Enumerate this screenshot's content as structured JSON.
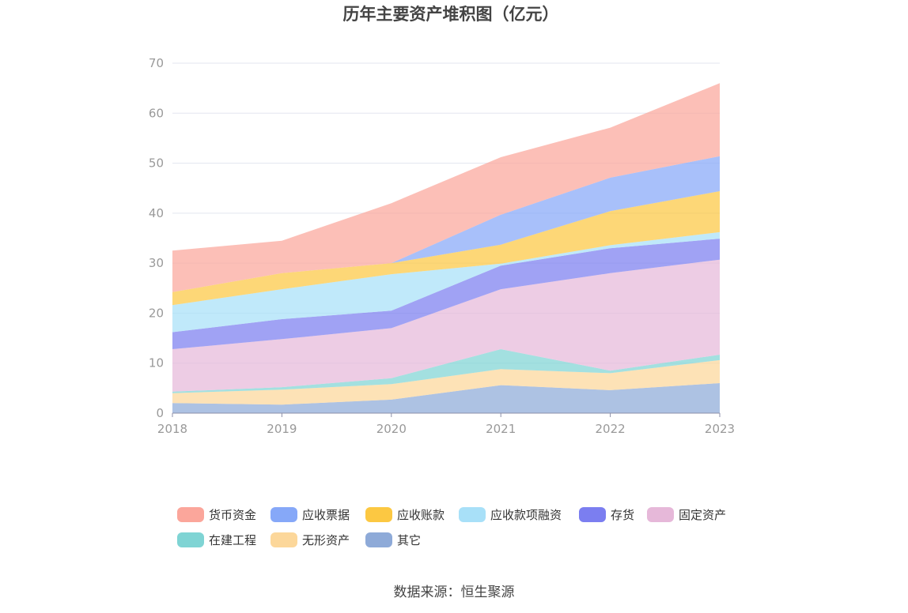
{
  "chart_data": {
    "type": "area",
    "stacked": true,
    "title": "历年主要资产堆积图（亿元）",
    "x": [
      "2018",
      "2019",
      "2020",
      "2021",
      "2022",
      "2023"
    ],
    "ylim": [
      0,
      70
    ],
    "yticks": [
      0,
      10,
      20,
      30,
      40,
      50,
      60,
      70
    ],
    "grid": true,
    "legend_position": "bottom",
    "series": [
      {
        "name": "其它",
        "color": "#8eaad8",
        "values": [
          2.0,
          1.7,
          2.7,
          5.6,
          4.6,
          6.0
        ]
      },
      {
        "name": "无形资产",
        "color": "#fcd79a",
        "values": [
          2.0,
          3.0,
          3.1,
          3.2,
          3.4,
          4.6
        ]
      },
      {
        "name": "在建工程",
        "color": "#7fd4d4",
        "values": [
          0.3,
          0.5,
          1.2,
          4.0,
          0.5,
          1.1
        ]
      },
      {
        "name": "固定资产",
        "color": "#e6b8d9",
        "values": [
          8.5,
          9.6,
          10.0,
          12.0,
          19.5,
          19.0
        ]
      },
      {
        "name": "存货",
        "color": "#7b7ef0",
        "values": [
          3.4,
          4.0,
          3.5,
          4.7,
          5.0,
          4.2
        ]
      },
      {
        "name": "应收款项融资",
        "color": "#a8e0f8",
        "values": [
          5.4,
          6.0,
          7.3,
          0.4,
          0.6,
          1.3
        ]
      },
      {
        "name": "应收账款",
        "color": "#fcc842",
        "values": [
          2.6,
          3.2,
          2.2,
          3.8,
          6.8,
          8.2
        ]
      },
      {
        "name": "应收票据",
        "color": "#86a8f8",
        "values": [
          0,
          0,
          0,
          6.0,
          6.7,
          7.0
        ]
      },
      {
        "name": "货币资金",
        "color": "#fba69b",
        "values": [
          8.3,
          6.5,
          12.0,
          11.5,
          10.0,
          14.6
        ]
      }
    ]
  },
  "legend_order": [
    "货币资金",
    "应收票据",
    "应收账款",
    "应收款项融资",
    "存货",
    "固定资产",
    "在建工程",
    "无形资产",
    "其它"
  ],
  "source": "数据来源：恒生聚源"
}
